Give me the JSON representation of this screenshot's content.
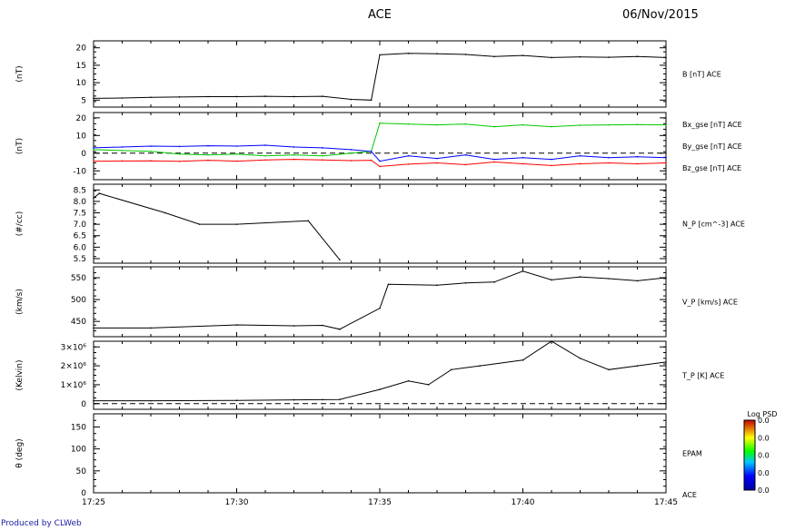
{
  "header": {
    "title": "ACE",
    "date": "06/Nov/2015"
  },
  "footer": {
    "credit": "Produced by CLWeb"
  },
  "chart_data": [
    {
      "type": "line",
      "ylabel": "(nT)",
      "right_labels": [
        {
          "text": "B [nT] ACE",
          "color": "#000000"
        }
      ],
      "yticks": [
        5,
        10,
        15,
        20
      ],
      "ylim": [
        3,
        22
      ],
      "x": [
        "17:25",
        "17:26",
        "17:27",
        "17:28",
        "17:29",
        "17:30",
        "17:31",
        "17:32",
        "17:33",
        "17:34",
        "17:34.7",
        "17:35",
        "17:36",
        "17:37",
        "17:38",
        "17:39",
        "17:40",
        "17:41",
        "17:42",
        "17:43",
        "17:44",
        "17:45"
      ],
      "series": [
        {
          "color": "#000000",
          "values": [
            5.5,
            5.6,
            5.8,
            5.9,
            6.0,
            6.0,
            6.1,
            6.0,
            6.1,
            5.2,
            5.0,
            18.0,
            18.4,
            18.3,
            18.1,
            17.5,
            17.8,
            17.2,
            17.4,
            17.3,
            17.5,
            17.2
          ]
        }
      ]
    },
    {
      "type": "line",
      "ylabel": "(nT)",
      "right_labels": [
        {
          "text": "Bx_gse [nT] ACE",
          "color": "#ff0000"
        },
        {
          "text": "By_gse [nT] ACE",
          "color": "#00c800"
        },
        {
          "text": "Bz_gse [nT] ACE",
          "color": "#0000ff"
        }
      ],
      "yticks": [
        -10,
        0,
        10,
        20
      ],
      "ylim": [
        -15,
        23
      ],
      "zero_line": true,
      "x": [
        "17:25",
        "17:26",
        "17:27",
        "17:28",
        "17:29",
        "17:30",
        "17:31",
        "17:32",
        "17:33",
        "17:34",
        "17:34.7",
        "17:35",
        "17:36",
        "17:37",
        "17:38",
        "17:39",
        "17:40",
        "17:41",
        "17:42",
        "17:43",
        "17:44",
        "17:45"
      ],
      "series": [
        {
          "color": "#ff0000",
          "values": [
            -4.5,
            -4.4,
            -4.3,
            -4.6,
            -4.0,
            -4.5,
            -3.8,
            -3.5,
            -3.8,
            -4.2,
            -4.0,
            -7.5,
            -6.2,
            -5.5,
            -6.5,
            -5.0,
            -6.0,
            -7.0,
            -6.0,
            -5.5,
            -6.0,
            -5.5
          ]
        },
        {
          "color": "#00c800",
          "values": [
            2.0,
            1.5,
            1.0,
            -0.5,
            -1.0,
            -0.5,
            -1.5,
            -1.0,
            -1.5,
            0.0,
            1.0,
            17.0,
            16.5,
            16.0,
            16.5,
            15.0,
            16.0,
            15.0,
            15.8,
            16.0,
            16.2,
            16.0
          ]
        },
        {
          "color": "#0000ff",
          "values": [
            3.0,
            3.5,
            4.0,
            3.8,
            4.2,
            4.0,
            4.5,
            3.5,
            3.0,
            2.0,
            1.0,
            -4.5,
            -1.5,
            -3.0,
            -1.0,
            -3.5,
            -2.5,
            -3.5,
            -1.5,
            -2.5,
            -2.0,
            -2.5
          ]
        }
      ]
    },
    {
      "type": "line",
      "ylabel": "(#/cc)",
      "right_labels": [
        {
          "text": "N_P [cm^-3] ACE",
          "color": "#000000"
        }
      ],
      "yticks": [
        5.5,
        6.0,
        6.5,
        7.0,
        7.5,
        8.0,
        8.5
      ],
      "ytick_labels": [
        "5.5",
        "6.0",
        "6.5",
        "7.0",
        "7.5",
        "8.0",
        "8.5"
      ],
      "ylim": [
        5.3,
        8.75
      ],
      "x": [
        "17:25",
        "17:25.2",
        "17:27.5",
        "17:28.7",
        "17:30",
        "17:32.5",
        "17:33.6"
      ],
      "series": [
        {
          "color": "#000000",
          "values": [
            8.15,
            8.35,
            7.5,
            7.0,
            7.0,
            7.15,
            5.45
          ]
        }
      ]
    },
    {
      "type": "line",
      "ylabel": "(km/s)",
      "right_labels": [
        {
          "text": "V_P [km/s] ACE",
          "color": "#000000"
        }
      ],
      "yticks": [
        450,
        500,
        550
      ],
      "ylim": [
        415,
        575
      ],
      "x": [
        "17:25",
        "17:27",
        "17:30",
        "17:32",
        "17:33",
        "17:33.6",
        "17:35",
        "17:35.3",
        "17:37",
        "17:38",
        "17:39",
        "17:40",
        "17:41",
        "17:42",
        "17:43",
        "17:44",
        "17:45"
      ],
      "series": [
        {
          "color": "#000000",
          "values": [
            435,
            435,
            442,
            440,
            441,
            432,
            480,
            535,
            533,
            538,
            540,
            565,
            545,
            552,
            548,
            543,
            550
          ]
        }
      ]
    },
    {
      "type": "line",
      "ylabel": "(Kelvin)",
      "right_labels": [
        {
          "text": "T_P [K] ACE",
          "color": "#000000"
        }
      ],
      "yticks": [
        0,
        1000000,
        2000000,
        3000000
      ],
      "ytick_labels": [
        "0",
        "1×10⁶",
        "2×10⁶",
        "3×10⁶"
      ],
      "ylim": [
        -300000,
        3300000
      ],
      "zero_line": true,
      "x": [
        "17:25",
        "17:27",
        "17:30",
        "17:32",
        "17:33",
        "17:33.6",
        "17:35",
        "17:36",
        "17:36.7",
        "17:37.5",
        "17:38.5",
        "17:40",
        "17:41",
        "17:42",
        "17:43",
        "17:44",
        "17:45"
      ],
      "series": [
        {
          "color": "#000000",
          "values": [
            150000,
            150000,
            170000,
            200000,
            210000,
            220000,
            750000,
            1200000,
            1000000,
            1800000,
            2000000,
            2300000,
            3300000,
            2400000,
            1800000,
            2000000,
            2200000
          ]
        }
      ]
    },
    {
      "type": "heatmap",
      "ylabel": "θ (deg)",
      "right_labels": [
        {
          "text": "EPAM",
          "color": "#000000"
        }
      ],
      "yticks": [
        0,
        50,
        100,
        150
      ],
      "ylim": [
        0,
        180
      ],
      "colorbar": {
        "title": "Log PSD",
        "ticks": [
          "0.0",
          "0.0",
          "0.0",
          "0.0",
          "0.0"
        ]
      }
    }
  ],
  "xaxis": {
    "ticks": [
      "17:25",
      "17:30",
      "17:35",
      "17:40",
      "17:45"
    ],
    "sub_label": "ACE"
  }
}
